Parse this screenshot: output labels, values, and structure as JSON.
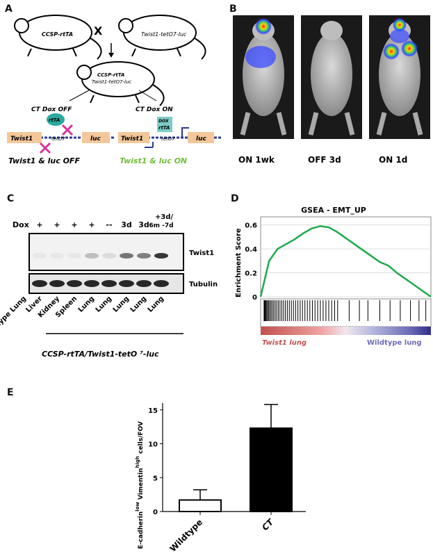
{
  "panels": {
    "A": {
      "letter": "A",
      "mouse_left": "CCSP-rtTA",
      "cross": "X",
      "mouse_right": "Twist1-tetO7-luc",
      "mouse_child_line1": "CCSP-rtTA",
      "mouse_child_line2": "Twist1-tetO7-luc",
      "off_label": "CT Dox OFF",
      "on_label": "CT Dox ON",
      "rtta": "rtTA",
      "dox": "DOX",
      "rtta2": "rtTA",
      "gene": "Twist1",
      "teto": "tetO7",
      "luc": "luc",
      "off_result": "Twist1 & luc OFF",
      "on_result": "Twist1 & luc ON",
      "colors": {
        "on_result": "#6fbf3a",
        "x_mark": "#d6339a",
        "box": "#f4c79a",
        "rtta": "#2aa9a0",
        "dna": "#2b3a8f"
      }
    },
    "B": {
      "letter": "B",
      "captions": [
        "ON 1wk",
        "OFF 3d",
        "ON 1d"
      ]
    },
    "C": {
      "letter": "C",
      "dox_label": "Dox",
      "dox_values": [
        "+",
        "+",
        "+",
        "+",
        "--",
        "3d",
        "3d",
        "6m -7d"
      ],
      "dox_extra": "+3d/",
      "band_labels": [
        "Twist1",
        "Tubulin"
      ],
      "lanes": [
        "Wildtype Lung",
        "Liver",
        "Kidney",
        "Spleen",
        "Lung",
        "Lung",
        "Lung",
        "Lung",
        "Lung"
      ],
      "genotype": "CCSP-rtTA/Twist1-tetO ⁷-luc"
    },
    "D": {
      "letter": "D",
      "title": "GSEA - EMT_UP",
      "ylabel": "Enrichment Score",
      "yticks": [
        "0.6",
        "0.4",
        "0.2",
        "0"
      ],
      "left_label": "Twist1 lung",
      "right_label": "Wildtype lung",
      "colors": {
        "curve": "#1aaa4a",
        "left": "#c0504d",
        "right": "#6a6ab5"
      }
    },
    "E": {
      "letter": "E",
      "ylabel_line1": "E-cadherin",
      "ylabel_sup1": "low",
      "ylabel_mid": " Vimentin",
      "ylabel_sup2": "high",
      "ylabel_tail": " cells/FOV",
      "yticks": [
        "0",
        "5",
        "10",
        "15"
      ]
    }
  },
  "chart_data": [
    {
      "type": "line",
      "title": "GSEA - EMT_UP",
      "ylabel": "Enrichment Score",
      "ylim": [
        0,
        0.6
      ],
      "x": [
        0,
        0.05,
        0.1,
        0.15,
        0.2,
        0.25,
        0.3,
        0.35,
        0.4,
        0.45,
        0.5,
        0.55,
        0.6,
        0.65,
        0.7,
        0.75,
        0.8,
        0.85,
        0.9,
        0.95,
        1.0
      ],
      "series": [
        {
          "values": [
            0,
            0.3,
            0.4,
            0.44,
            0.48,
            0.53,
            0.57,
            0.59,
            0.58,
            0.54,
            0.49,
            0.44,
            0.39,
            0.34,
            0.29,
            0.26,
            0.2,
            0.15,
            0.1,
            0.05,
            0
          ]
        }
      ]
    },
    {
      "type": "bar",
      "categories": [
        "Wildtype",
        "CT"
      ],
      "values": [
        1.7,
        12.3
      ],
      "errors": [
        1.5,
        3.5
      ],
      "ylim": [
        0,
        15
      ]
    }
  ]
}
